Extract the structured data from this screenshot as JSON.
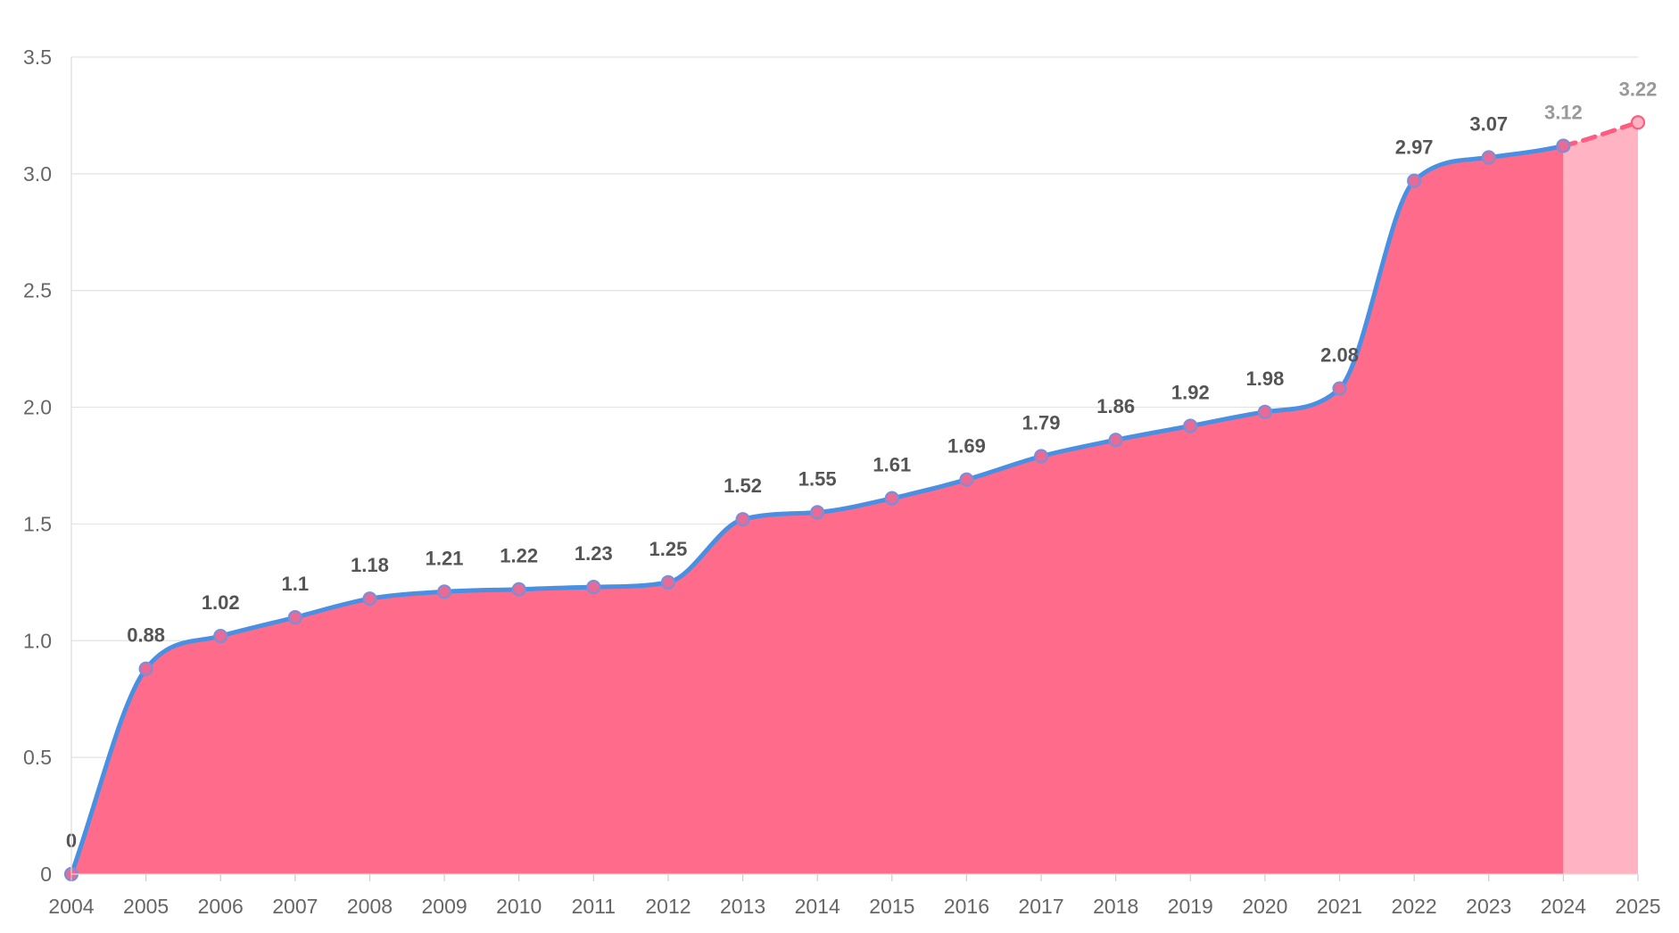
{
  "chart_data": {
    "type": "area",
    "title": "",
    "xlabel": "",
    "ylabel": "",
    "x": [
      "2004",
      "2005",
      "2006",
      "2007",
      "2008",
      "2009",
      "2010",
      "2011",
      "2012",
      "2013",
      "2014",
      "2015",
      "2016",
      "2017",
      "2018",
      "2019",
      "2020",
      "2021",
      "2022",
      "2023",
      "2024",
      "2025"
    ],
    "ylim": [
      0,
      3.5
    ],
    "yticks": [
      "0",
      "0.5",
      "1.0",
      "1.5",
      "2.0",
      "2.5",
      "3.0",
      "3.5"
    ],
    "series": [
      {
        "values": [
          0,
          0.88,
          1.02,
          1.1,
          1.18,
          1.21,
          1.22,
          1.23,
          1.25,
          1.52,
          1.55,
          1.61,
          1.69,
          1.79,
          1.86,
          1.92,
          1.98,
          2.08,
          2.97,
          3.07,
          3.12,
          3.22
        ],
        "labels": [
          "0",
          "0.88",
          "1.02",
          "1.1",
          "1.18",
          "1.21",
          "1.22",
          "1.23",
          "1.25",
          "1.52",
          "1.55",
          "1.61",
          "1.69",
          "1.79",
          "1.86",
          "1.92",
          "1.98",
          "2.08",
          "2.97",
          "3.07",
          "3.12",
          "3.22"
        ],
        "projected_from_index": 20
      }
    ],
    "grid": true,
    "legend": "none",
    "colors": {
      "fill": "#ff6b8a",
      "projected_fill": "#ffb3c3",
      "line": "#4a90e2",
      "projected_line": "#ff5c80",
      "marker": "#e86a96",
      "marker_stroke": "#7a8fd8",
      "grid": "#e3e3e3",
      "tick_text": "#666666",
      "label_text": "#555555",
      "projected_label_text": "#999999"
    }
  }
}
